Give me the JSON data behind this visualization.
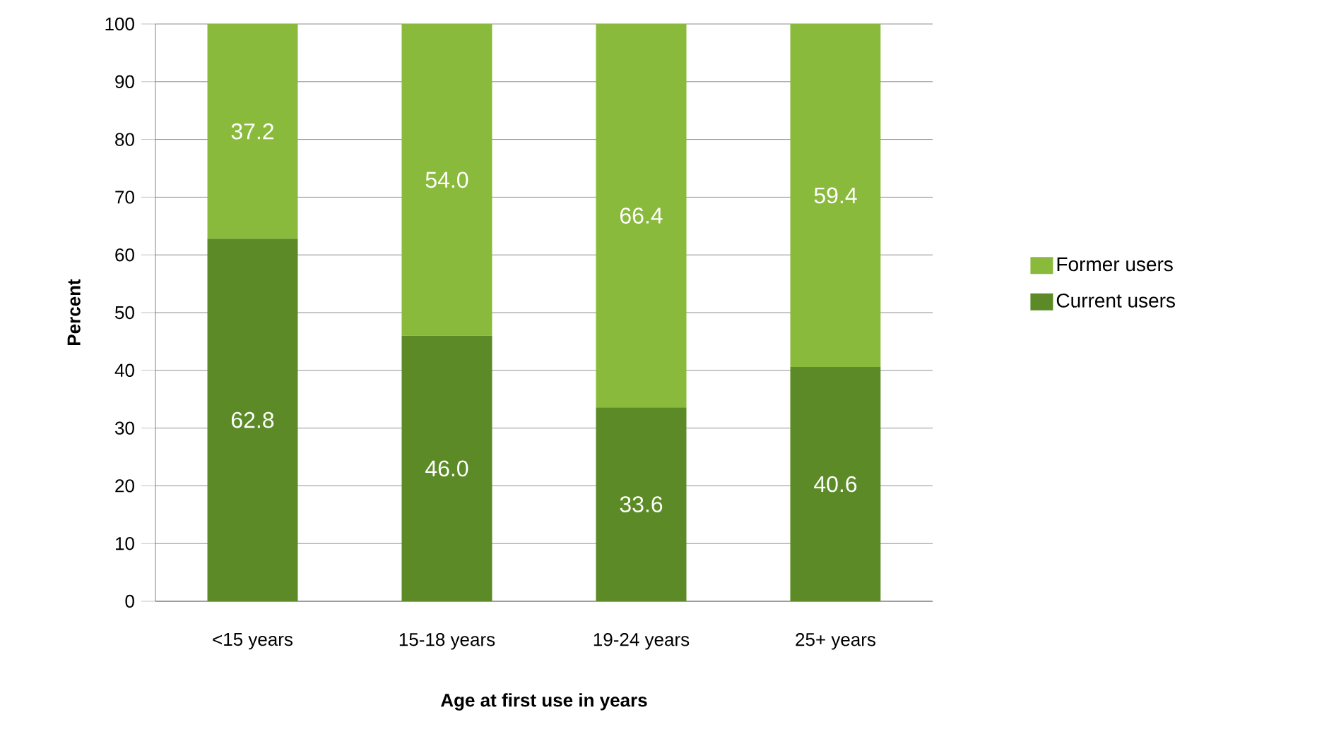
{
  "chart_data": {
    "type": "bar",
    "stacked": true,
    "xlabel": "Age at first use in years",
    "ylabel": "Percent",
    "categories": [
      "<15 years",
      "15-18 years",
      "19-24 years",
      "25+ years"
    ],
    "series": [
      {
        "name": "Current users",
        "color": "#5b8a26",
        "values": [
          62.8,
          46.0,
          33.6,
          40.6
        ],
        "value_labels": [
          "62.8",
          "46.0",
          "33.6",
          "40.6"
        ]
      },
      {
        "name": "Former users",
        "color": "#8aba3c",
        "values": [
          37.2,
          54.0,
          66.4,
          59.4
        ],
        "value_labels": [
          "37.2",
          "54.0",
          "66.4",
          "59.4"
        ]
      }
    ],
    "ylim": [
      0,
      100
    ],
    "yticks": [
      0,
      10,
      20,
      30,
      40,
      50,
      60,
      70,
      80,
      90,
      100
    ],
    "grid": "y",
    "legend": "right"
  }
}
